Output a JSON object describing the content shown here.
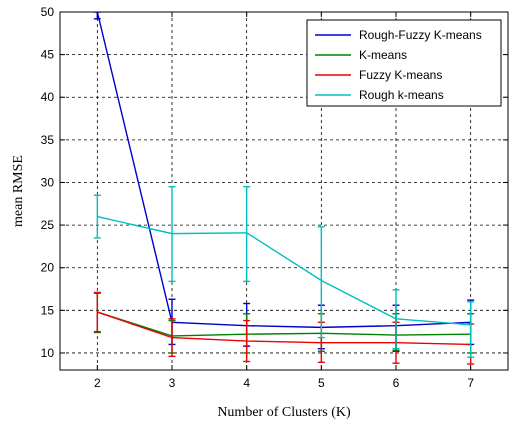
{
  "chart_data": {
    "type": "line",
    "xlabel": "Number of Clusters (K)",
    "ylabel": "mean RMSE",
    "x": [
      2,
      3,
      4,
      5,
      6,
      7
    ],
    "xlim": [
      1.5,
      7.5
    ],
    "ylim": [
      8,
      50
    ],
    "xticks": [
      "2",
      "3",
      "4",
      "5",
      "6",
      "7"
    ],
    "yticks": [
      "10",
      "15",
      "20",
      "25",
      "30",
      "35",
      "40",
      "45",
      "50"
    ],
    "grid": true,
    "legend_position": "top-right",
    "series": [
      {
        "name": "Rough-Fuzzy K-means",
        "color": "#0000cc",
        "values": [
          50,
          13.6,
          13.2,
          13.0,
          13.2,
          13.6
        ],
        "err_low": [
          49.2,
          11.0,
          10.8,
          10.5,
          10.2,
          11.0
        ],
        "err_high": [
          50,
          16.3,
          15.8,
          15.6,
          15.6,
          16.2
        ]
      },
      {
        "name": "K-means",
        "color": "#008000",
        "values": [
          14.8,
          12.0,
          12.2,
          12.3,
          12.1,
          12.2
        ],
        "err_low": [
          12.4,
          10.0,
          10.0,
          10.2,
          10.3,
          10.0
        ],
        "err_high": [
          17.0,
          13.8,
          14.6,
          14.6,
          14.6,
          14.6
        ]
      },
      {
        "name": "Fuzzy K-means",
        "color": "#ee0000",
        "values": [
          14.8,
          11.8,
          11.4,
          11.2,
          11.2,
          11.0
        ],
        "err_low": [
          12.5,
          9.6,
          9.0,
          8.9,
          8.8,
          8.7
        ],
        "err_high": [
          17.1,
          14.0,
          13.8,
          13.6,
          13.6,
          13.4
        ]
      },
      {
        "name": "Rough k-means",
        "color": "#00c0c0",
        "values": [
          26.0,
          24.0,
          24.1,
          18.5,
          14.0,
          13.3
        ],
        "err_low": [
          23.5,
          18.4,
          18.4,
          11.8,
          10.5,
          9.5
        ],
        "err_high": [
          28.5,
          29.5,
          29.5,
          24.8,
          17.4,
          16.0
        ]
      }
    ]
  }
}
